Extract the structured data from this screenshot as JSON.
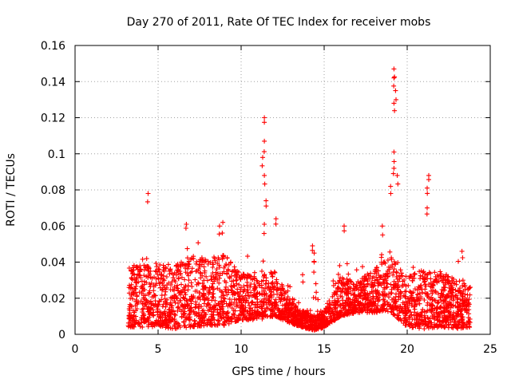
{
  "chart_data": {
    "type": "scatter",
    "title": "Day 270 of 2011, Rate Of TEC Index for receiver mobs",
    "xlabel": "GPS time / hours",
    "ylabel": "ROTI / TECUs",
    "xlim": [
      0,
      25
    ],
    "ylim": [
      0,
      0.16
    ],
    "xticks": [
      0,
      5,
      10,
      15,
      20,
      25
    ],
    "yticks": [
      0,
      0.02,
      0.04,
      0.06,
      0.08,
      0.1,
      0.12,
      0.14,
      0.16
    ],
    "xtick_labels": [
      "0",
      "5",
      "10",
      "15",
      "20",
      "25"
    ],
    "ytick_labels": [
      "0",
      "0.02",
      "0.04",
      "0.06",
      "0.08",
      "0.1",
      "0.12",
      "0.14",
      "0.16"
    ],
    "grid": true,
    "marker": "+",
    "color": "#ff0000",
    "x_range_observed": [
      3.2,
      23.8
    ],
    "notable_points": [
      {
        "x": 4.4,
        "y": 0.078
      },
      {
        "x": 11.4,
        "y": 0.12
      },
      {
        "x": 11.4,
        "y": 0.107
      },
      {
        "x": 11.3,
        "y": 0.098
      },
      {
        "x": 11.4,
        "y": 0.088
      },
      {
        "x": 11.5,
        "y": 0.074
      },
      {
        "x": 11.4,
        "y": 0.061
      },
      {
        "x": 12.1,
        "y": 0.064
      },
      {
        "x": 19.2,
        "y": 0.147
      },
      {
        "x": 19.2,
        "y": 0.142
      },
      {
        "x": 19.3,
        "y": 0.135
      },
      {
        "x": 19.2,
        "y": 0.128
      },
      {
        "x": 19.2,
        "y": 0.101
      },
      {
        "x": 19.2,
        "y": 0.092
      },
      {
        "x": 19.4,
        "y": 0.088
      },
      {
        "x": 19.0,
        "y": 0.082
      },
      {
        "x": 21.3,
        "y": 0.088
      },
      {
        "x": 21.2,
        "y": 0.081
      },
      {
        "x": 21.2,
        "y": 0.07
      },
      {
        "x": 6.7,
        "y": 0.061
      },
      {
        "x": 8.9,
        "y": 0.062
      },
      {
        "x": 8.7,
        "y": 0.06
      },
      {
        "x": 14.3,
        "y": 0.049
      },
      {
        "x": 14.4,
        "y": 0.045
      },
      {
        "x": 14.4,
        "y": 0.04
      },
      {
        "x": 13.7,
        "y": 0.033
      },
      {
        "x": 14.5,
        "y": 0.028
      },
      {
        "x": 16.2,
        "y": 0.06
      },
      {
        "x": 18.5,
        "y": 0.06
      },
      {
        "x": 23.3,
        "y": 0.046
      }
    ],
    "envelope": [
      {
        "x": 3.3,
        "upper": 0.038,
        "lower": 0.004
      },
      {
        "x": 4.0,
        "upper": 0.038,
        "lower": 0.004
      },
      {
        "x": 5.0,
        "upper": 0.04,
        "lower": 0.004
      },
      {
        "x": 6.0,
        "upper": 0.038,
        "lower": 0.003
      },
      {
        "x": 7.0,
        "upper": 0.045,
        "lower": 0.004
      },
      {
        "x": 8.0,
        "upper": 0.042,
        "lower": 0.005
      },
      {
        "x": 9.0,
        "upper": 0.045,
        "lower": 0.005
      },
      {
        "x": 10.0,
        "upper": 0.034,
        "lower": 0.008
      },
      {
        "x": 11.0,
        "upper": 0.032,
        "lower": 0.008
      },
      {
        "x": 12.0,
        "upper": 0.036,
        "lower": 0.01
      },
      {
        "x": 13.0,
        "upper": 0.018,
        "lower": 0.006
      },
      {
        "x": 14.0,
        "upper": 0.012,
        "lower": 0.003
      },
      {
        "x": 14.5,
        "upper": 0.01,
        "lower": 0.002
      },
      {
        "x": 15.0,
        "upper": 0.013,
        "lower": 0.004
      },
      {
        "x": 16.0,
        "upper": 0.032,
        "lower": 0.01
      },
      {
        "x": 17.0,
        "upper": 0.03,
        "lower": 0.012
      },
      {
        "x": 18.0,
        "upper": 0.036,
        "lower": 0.012
      },
      {
        "x": 19.0,
        "upper": 0.045,
        "lower": 0.012
      },
      {
        "x": 20.0,
        "upper": 0.032,
        "lower": 0.004
      },
      {
        "x": 21.0,
        "upper": 0.036,
        "lower": 0.003
      },
      {
        "x": 22.0,
        "upper": 0.035,
        "lower": 0.004
      },
      {
        "x": 23.0,
        "upper": 0.03,
        "lower": 0.003
      },
      {
        "x": 23.8,
        "upper": 0.03,
        "lower": 0.004
      }
    ]
  }
}
